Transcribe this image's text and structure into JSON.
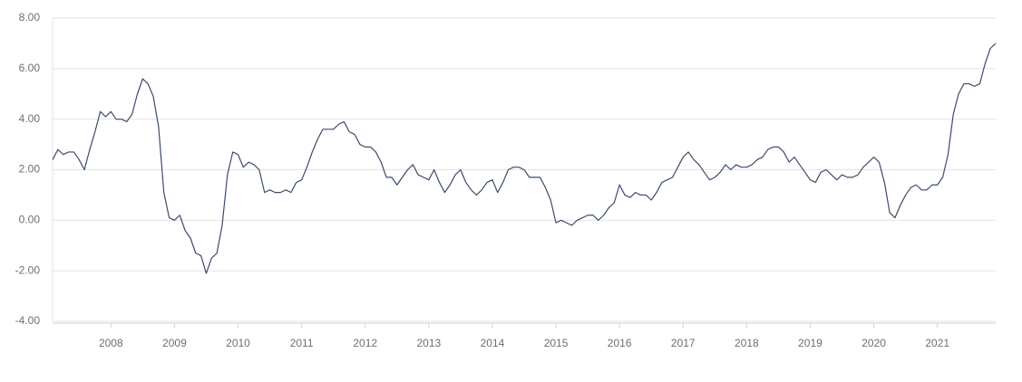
{
  "chart_data": {
    "type": "line",
    "x": [
      2007.083,
      2007.167,
      2007.25,
      2007.333,
      2007.417,
      2007.5,
      2007.583,
      2007.667,
      2007.75,
      2007.833,
      2007.917,
      2008,
      2008.083,
      2008.167,
      2008.25,
      2008.333,
      2008.417,
      2008.5,
      2008.583,
      2008.667,
      2008.75,
      2008.833,
      2008.917,
      2009,
      2009.083,
      2009.167,
      2009.25,
      2009.333,
      2009.417,
      2009.5,
      2009.583,
      2009.667,
      2009.75,
      2009.833,
      2009.917,
      2010,
      2010.083,
      2010.167,
      2010.25,
      2010.333,
      2010.417,
      2010.5,
      2010.583,
      2010.667,
      2010.75,
      2010.833,
      2010.917,
      2011,
      2011.083,
      2011.167,
      2011.25,
      2011.333,
      2011.417,
      2011.5,
      2011.583,
      2011.667,
      2011.75,
      2011.833,
      2011.917,
      2012,
      2012.083,
      2012.167,
      2012.25,
      2012.333,
      2012.417,
      2012.5,
      2012.583,
      2012.667,
      2012.75,
      2012.833,
      2012.917,
      2013,
      2013.083,
      2013.167,
      2013.25,
      2013.333,
      2013.417,
      2013.5,
      2013.583,
      2013.667,
      2013.75,
      2013.833,
      2013.917,
      2014,
      2014.083,
      2014.167,
      2014.25,
      2014.333,
      2014.417,
      2014.5,
      2014.583,
      2014.667,
      2014.75,
      2014.833,
      2014.917,
      2015,
      2015.083,
      2015.167,
      2015.25,
      2015.333,
      2015.417,
      2015.5,
      2015.583,
      2015.667,
      2015.75,
      2015.833,
      2015.917,
      2016,
      2016.083,
      2016.167,
      2016.25,
      2016.333,
      2016.417,
      2016.5,
      2016.583,
      2016.667,
      2016.75,
      2016.833,
      2016.917,
      2017,
      2017.083,
      2017.167,
      2017.25,
      2017.333,
      2017.417,
      2017.5,
      2017.583,
      2017.667,
      2017.75,
      2017.833,
      2017.917,
      2018,
      2018.083,
      2018.167,
      2018.25,
      2018.333,
      2018.417,
      2018.5,
      2018.583,
      2018.667,
      2018.75,
      2018.833,
      2018.917,
      2019,
      2019.083,
      2019.167,
      2019.25,
      2019.333,
      2019.417,
      2019.5,
      2019.583,
      2019.667,
      2019.75,
      2019.833,
      2019.917,
      2020,
      2020.083,
      2020.167,
      2020.25,
      2020.333,
      2020.417,
      2020.5,
      2020.583,
      2020.667,
      2020.75,
      2020.833,
      2020.917,
      2021,
      2021.083,
      2021.167,
      2021.25,
      2021.333,
      2021.417,
      2021.5,
      2021.583,
      2021.667,
      2021.75,
      2021.833,
      2021.917
    ],
    "series": [
      {
        "color": "#3b4c6b",
        "values": [
          2.4,
          2.8,
          2.6,
          2.7,
          2.7,
          2.4,
          2.0,
          2.8,
          3.5,
          4.3,
          4.1,
          4.3,
          4.0,
          4.0,
          3.9,
          4.2,
          5.0,
          5.6,
          5.4,
          4.9,
          3.7,
          1.1,
          0.1,
          0.0,
          0.2,
          -0.4,
          -0.7,
          -1.3,
          -1.4,
          -2.1,
          -1.5,
          -1.3,
          -0.2,
          1.8,
          2.7,
          2.6,
          2.1,
          2.3,
          2.2,
          2.0,
          1.1,
          1.2,
          1.1,
          1.1,
          1.2,
          1.1,
          1.5,
          1.6,
          2.1,
          2.7,
          3.2,
          3.6,
          3.6,
          3.6,
          3.8,
          3.9,
          3.5,
          3.4,
          3.0,
          2.9,
          2.9,
          2.7,
          2.3,
          1.7,
          1.7,
          1.4,
          1.7,
          2.0,
          2.2,
          1.8,
          1.7,
          1.6,
          2.0,
          1.5,
          1.1,
          1.4,
          1.8,
          2.0,
          1.5,
          1.2,
          1.0,
          1.2,
          1.5,
          1.6,
          1.1,
          1.5,
          2.0,
          2.1,
          2.1,
          2.0,
          1.7,
          1.7,
          1.7,
          1.3,
          0.8,
          -0.1,
          0.0,
          -0.1,
          -0.2,
          0.0,
          0.1,
          0.2,
          0.2,
          0.0,
          0.2,
          0.5,
          0.7,
          1.4,
          1.0,
          0.9,
          1.1,
          1.0,
          1.0,
          0.8,
          1.1,
          1.5,
          1.6,
          1.7,
          2.1,
          2.5,
          2.7,
          2.4,
          2.2,
          1.9,
          1.6,
          1.7,
          1.9,
          2.2,
          2.0,
          2.2,
          2.1,
          2.1,
          2.2,
          2.4,
          2.5,
          2.8,
          2.9,
          2.9,
          2.7,
          2.3,
          2.5,
          2.2,
          1.9,
          1.6,
          1.5,
          1.9,
          2.0,
          1.8,
          1.6,
          1.8,
          1.7,
          1.7,
          1.8,
          2.1,
          2.3,
          2.5,
          2.3,
          1.5,
          0.3,
          0.1,
          0.6,
          1.0,
          1.3,
          1.4,
          1.2,
          1.2,
          1.4,
          1.4,
          1.7,
          2.6,
          4.2,
          5.0,
          5.4,
          5.4,
          5.3,
          5.4,
          6.2,
          6.8,
          7.0
        ]
      }
    ],
    "xlim": [
      2007.083,
      2021.917
    ],
    "xticks": [
      2008,
      2009,
      2010,
      2011,
      2012,
      2013,
      2014,
      2015,
      2016,
      2017,
      2018,
      2019,
      2020,
      2021
    ],
    "ylim": [
      -4,
      8
    ],
    "yticks": [
      {
        "value": -4,
        "label": "-4.00"
      },
      {
        "value": -2,
        "label": "-2.00"
      },
      {
        "value": 0,
        "label": "0.00"
      },
      {
        "value": 2,
        "label": "2.00"
      },
      {
        "value": 4,
        "label": "4.00"
      },
      {
        "value": 6,
        "label": "6.00"
      },
      {
        "value": 8,
        "label": "8.00"
      }
    ],
    "grid": true
  }
}
